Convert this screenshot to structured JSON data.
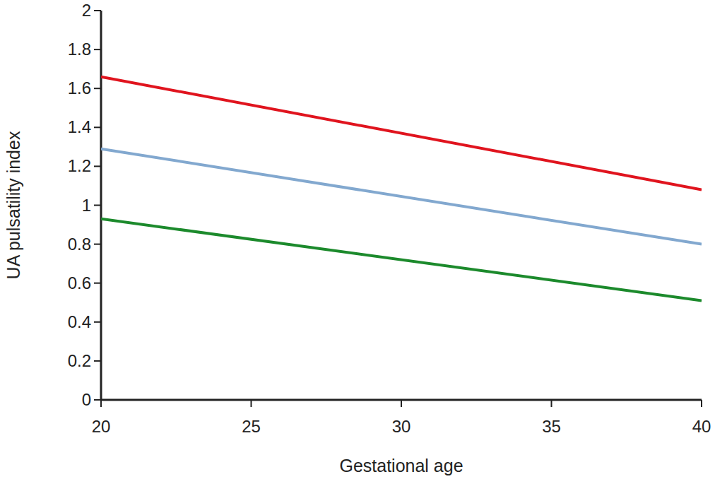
{
  "chart_data": {
    "type": "line",
    "x_label": "Gestational age",
    "y_label": "UA pulsatility index",
    "x": [
      20,
      40
    ],
    "series": [
      {
        "color": "#e0141e",
        "values": [
          1.66,
          1.08
        ]
      },
      {
        "color": "#82a8cf",
        "values": [
          1.29,
          0.8
        ]
      },
      {
        "color": "#1c8a2c",
        "values": [
          0.93,
          0.51
        ]
      }
    ],
    "xlim": [
      20,
      40
    ],
    "ylim": [
      0,
      2
    ],
    "xticks": [
      20,
      25,
      30,
      35,
      40
    ],
    "yticks": [
      0,
      0.2,
      0.4,
      0.6,
      0.8,
      1,
      1.2,
      1.4,
      1.6,
      1.8,
      2
    ],
    "grid": false
  }
}
